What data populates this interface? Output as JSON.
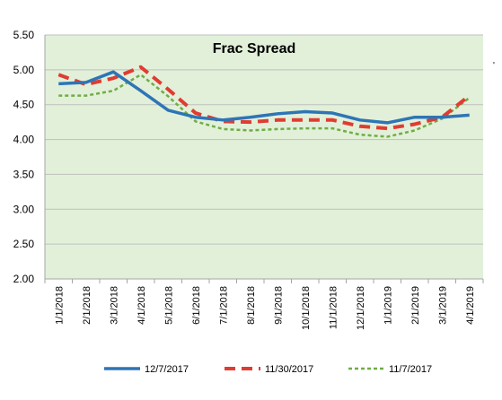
{
  "chart_data": {
    "type": "line",
    "title": "Frac Spread",
    "xlabel": "",
    "ylabel": "",
    "categories": [
      "1/1/2018",
      "2/1/2018",
      "3/1/2018",
      "4/1/2018",
      "5/1/2018",
      "6/1/2018",
      "7/1/2018",
      "8/1/2018",
      "9/1/2018",
      "10/1/2018",
      "11/1/2018",
      "12/1/2018",
      "1/1/2019",
      "2/1/2019",
      "3/1/2019",
      "4/1/2019"
    ],
    "ylim": [
      2.0,
      5.5
    ],
    "yticks": [
      "2.00",
      "2.50",
      "3.00",
      "3.50",
      "4.00",
      "4.50",
      "5.00",
      "5.50"
    ],
    "grid": "horizontal",
    "plot_background": "#e2f0d9",
    "legend_position": "bottom",
    "series": [
      {
        "name": "12/7/2017",
        "color": "#2e75b6",
        "style": "solid",
        "values": [
          4.8,
          4.82,
          4.97,
          4.7,
          4.42,
          4.32,
          4.28,
          4.32,
          4.37,
          4.4,
          4.38,
          4.28,
          4.24,
          4.32,
          4.32,
          4.35
        ]
      },
      {
        "name": "11/30/2017",
        "color": "#e03c31",
        "style": "dash",
        "values": [
          4.93,
          4.79,
          4.88,
          5.04,
          4.72,
          4.38,
          4.26,
          4.25,
          4.28,
          4.28,
          4.28,
          4.19,
          4.16,
          4.22,
          4.32,
          4.63
        ]
      },
      {
        "name": "11/7/2017",
        "color": "#70ad47",
        "style": "dot",
        "values": [
          4.63,
          4.63,
          4.7,
          4.93,
          4.62,
          4.26,
          4.15,
          4.13,
          4.15,
          4.16,
          4.16,
          4.07,
          4.04,
          4.13,
          4.3,
          4.6
        ]
      }
    ]
  },
  "side_mark": "'"
}
